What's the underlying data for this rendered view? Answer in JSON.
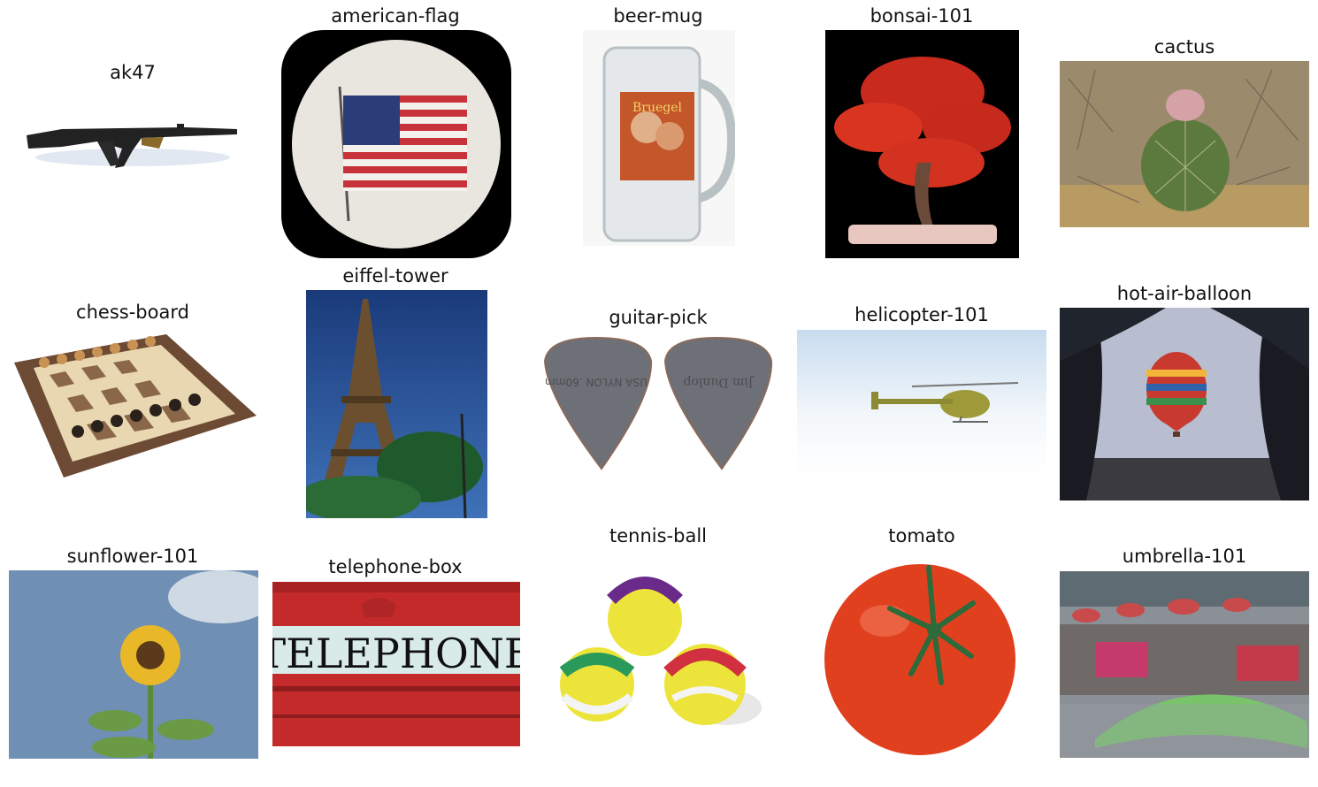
{
  "grid": {
    "rows": 3,
    "cols": 5,
    "cells": [
      {
        "label": "ak47",
        "subject": "rifle"
      },
      {
        "label": "american-flag",
        "subject": "flag"
      },
      {
        "label": "beer-mug",
        "subject": "mug"
      },
      {
        "label": "bonsai-101",
        "subject": "bonsai"
      },
      {
        "label": "cactus",
        "subject": "cactus"
      },
      {
        "label": "chess-board",
        "subject": "chessboard"
      },
      {
        "label": "eiffel-tower",
        "subject": "tower"
      },
      {
        "label": "guitar-pick",
        "subject": "picks"
      },
      {
        "label": "helicopter-101",
        "subject": "helicopter"
      },
      {
        "label": "hot-air-balloon",
        "subject": "balloon"
      },
      {
        "label": "sunflower-101",
        "subject": "sunflower"
      },
      {
        "label": "telephone-box",
        "subject": "telephone-sign"
      },
      {
        "label": "tennis-ball",
        "subject": "balls"
      },
      {
        "label": "tomato",
        "subject": "tomato"
      },
      {
        "label": "umbrella-101",
        "subject": "umbrella"
      }
    ]
  },
  "image_text": {
    "beer_mug_brand": "Bruegel",
    "pick_left_text": "USA NYLON .60mm",
    "pick_right_text": "Jim Dunlop",
    "telephone_sign": "TELEPHONE"
  }
}
